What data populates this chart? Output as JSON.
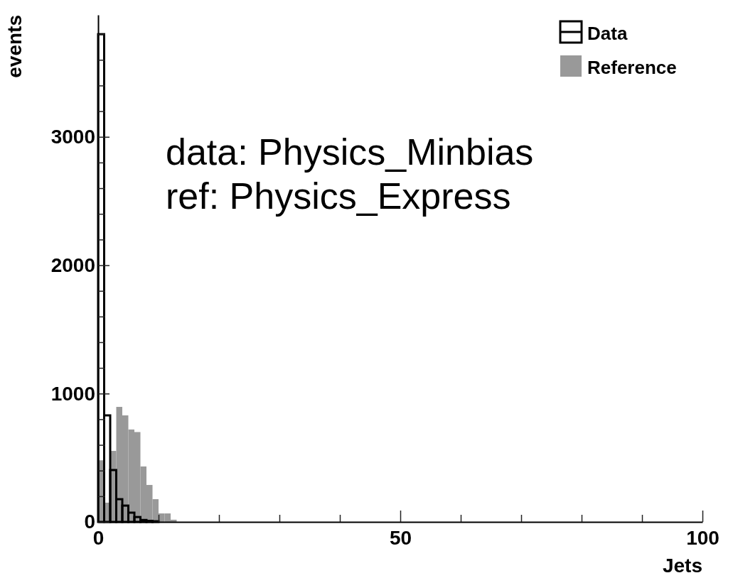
{
  "chart_data": {
    "type": "histogram",
    "xlabel": "Jets",
    "ylabel": "events",
    "bins": [
      0,
      1,
      2,
      3,
      4,
      5,
      6,
      7,
      8,
      9,
      10,
      11,
      12,
      13,
      14
    ],
    "series": [
      {
        "name": "Reference",
        "color": "#999999",
        "values": [
          480,
          150,
          553,
          896,
          830,
          720,
          700,
          432,
          288,
          177,
          66,
          66,
          17,
          0
        ]
      },
      {
        "name": "Data",
        "color": "#000000",
        "values": [
          3800,
          830,
          404,
          177,
          127,
          72,
          38,
          15,
          8,
          5,
          0,
          0,
          0,
          0
        ]
      }
    ],
    "xlim": [
      0,
      100
    ],
    "xticks": [
      0,
      {
        "value": 10,
        "label": null
      },
      {
        "value": 20,
        "label": null
      },
      {
        "value": 30,
        "label": null
      },
      {
        "value": 40,
        "label": null
      },
      50,
      {
        "value": 60,
        "label": null
      },
      {
        "value": 70,
        "label": null
      },
      {
        "value": 80,
        "label": null
      },
      {
        "value": 90,
        "label": null
      },
      100
    ],
    "ylim": [
      0,
      3950
    ],
    "yticks": [
      0,
      {
        "value": 200,
        "label": null
      },
      {
        "value": 400,
        "label": null
      },
      {
        "value": 600,
        "label": null
      },
      {
        "value": 800,
        "label": null
      },
      1000,
      {
        "value": 1200,
        "label": null
      },
      {
        "value": 1400,
        "label": null
      },
      {
        "value": 1600,
        "label": null
      },
      {
        "value": 1800,
        "label": null
      },
      2000,
      {
        "value": 2200,
        "label": null
      },
      {
        "value": 2400,
        "label": null
      },
      {
        "value": 2600,
        "label": null
      },
      {
        "value": 2800,
        "label": null
      },
      3000,
      {
        "value": 3200,
        "label": null
      },
      {
        "value": 3400,
        "label": null
      },
      {
        "value": 3600,
        "label": null
      },
      {
        "value": 3800,
        "label": null
      }
    ],
    "legend": "top right",
    "annotations": [
      "data: Physics_Minbias",
      "ref: Physics_Express"
    ]
  }
}
